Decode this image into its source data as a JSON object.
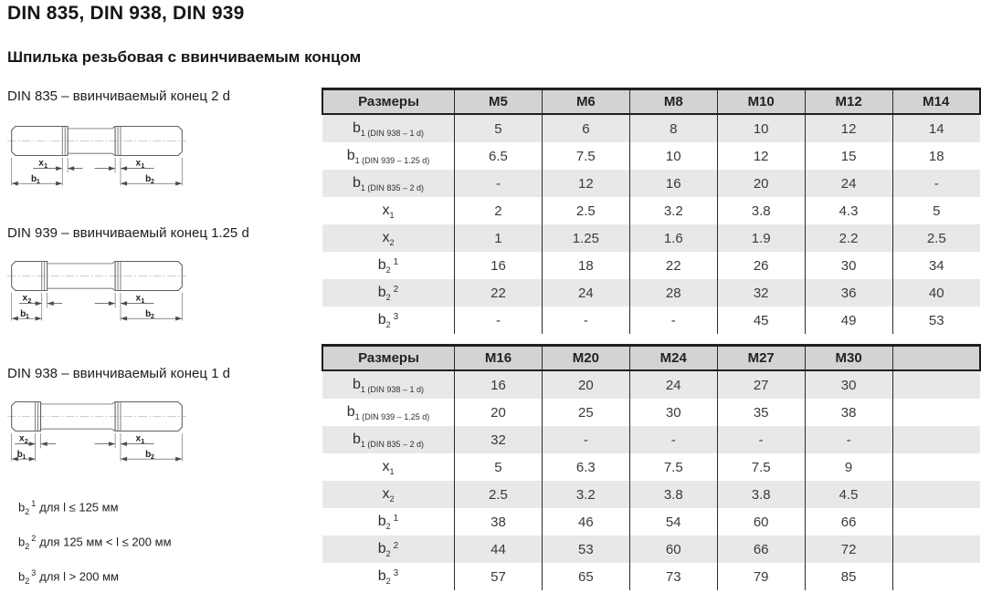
{
  "page": {
    "title": "DIN 835, DIN 938, DIN 939",
    "subtitle": "Шпилька резьбовая с ввинчиваемым концом"
  },
  "colors": {
    "header_bg": "#d3d3d3",
    "stripe_bg": "#e8e8e8",
    "border": "#1f1f1f"
  },
  "figures": [
    {
      "caption": "DIN 835 – ввинчиваемый конец 2 d",
      "left_dim": {
        "base": "x",
        "sub": "1"
      },
      "right_dim": {
        "base": "x",
        "sub": "1"
      },
      "left_len": {
        "base": "b",
        "sub": "1"
      },
      "right_len": {
        "base": "b",
        "sub": "2"
      }
    },
    {
      "caption": "DIN 939 – ввинчиваемый конец 1.25 d",
      "left_dim": {
        "base": "x",
        "sub": "2"
      },
      "right_dim": {
        "base": "x",
        "sub": "1"
      },
      "left_len": {
        "base": "b",
        "sub": "1"
      },
      "right_len": {
        "base": "b",
        "sub": "2"
      }
    },
    {
      "caption": "DIN 938 – ввинчиваемый конец 1 d",
      "left_dim": {
        "base": "x",
        "sub": "2"
      },
      "right_dim": {
        "base": "x",
        "sub": "1"
      },
      "left_len": {
        "base": "b",
        "sub": "1"
      },
      "right_len": {
        "base": "b",
        "sub": "2"
      }
    }
  ],
  "footnotes": [
    {
      "base": "b",
      "sub": "2",
      "sup": "1",
      "text": "для l ≤ 125 мм"
    },
    {
      "base": "b",
      "sub": "2",
      "sup": "2",
      "text": "для 125 мм < l ≤ 200 мм"
    },
    {
      "base": "b",
      "sub": "2",
      "sup": "3",
      "text": "для l > 200 мм"
    }
  ],
  "tables": [
    {
      "header": [
        "Размеры",
        "M5",
        "M6",
        "M8",
        "M10",
        "M12",
        "M14"
      ],
      "rows": [
        {
          "label": {
            "base": "b",
            "sub": "1 (DIN 938 – 1 d)"
          },
          "values": [
            "5",
            "6",
            "8",
            "10",
            "12",
            "14"
          ]
        },
        {
          "label": {
            "base": "b",
            "sub": "1 (DIN 939 – 1.25 d)"
          },
          "values": [
            "6.5",
            "7.5",
            "10",
            "12",
            "15",
            "18"
          ]
        },
        {
          "label": {
            "base": "b",
            "sub": "1 (DIN 835 – 2 d)"
          },
          "values": [
            "-",
            "12",
            "16",
            "20",
            "24",
            "-"
          ]
        },
        {
          "label": {
            "base": "x",
            "sub": "1"
          },
          "values": [
            "2",
            "2.5",
            "3.2",
            "3.8",
            "4.3",
            "5"
          ]
        },
        {
          "label": {
            "base": "x",
            "sub": "2"
          },
          "values": [
            "1",
            "1.25",
            "1.6",
            "1.9",
            "2.2",
            "2.5"
          ]
        },
        {
          "label": {
            "base": "b",
            "sub": "2",
            "sup": "1"
          },
          "values": [
            "16",
            "18",
            "22",
            "26",
            "30",
            "34"
          ]
        },
        {
          "label": {
            "base": "b",
            "sub": "2",
            "sup": "2"
          },
          "values": [
            "22",
            "24",
            "28",
            "32",
            "36",
            "40"
          ]
        },
        {
          "label": {
            "base": "b",
            "sub": "2",
            "sup": "3"
          },
          "values": [
            "-",
            "-",
            "-",
            "45",
            "49",
            "53"
          ]
        }
      ]
    },
    {
      "header": [
        "Размеры",
        "M16",
        "M20",
        "M24",
        "M27",
        "M30",
        ""
      ],
      "rows": [
        {
          "label": {
            "base": "b",
            "sub": "1 (DIN 938 – 1 d)"
          },
          "values": [
            "16",
            "20",
            "24",
            "27",
            "30",
            ""
          ]
        },
        {
          "label": {
            "base": "b",
            "sub": "1 (DIN 939 – 1.25 d)"
          },
          "values": [
            "20",
            "25",
            "30",
            "35",
            "38",
            ""
          ]
        },
        {
          "label": {
            "base": "b",
            "sub": "1 (DIN 835 – 2 d)"
          },
          "values": [
            "32",
            "-",
            "-",
            "-",
            "-",
            ""
          ]
        },
        {
          "label": {
            "base": "x",
            "sub": "1"
          },
          "values": [
            "5",
            "6.3",
            "7.5",
            "7.5",
            "9",
            ""
          ]
        },
        {
          "label": {
            "base": "x",
            "sub": "2"
          },
          "values": [
            "2.5",
            "3.2",
            "3.8",
            "3.8",
            "4.5",
            ""
          ]
        },
        {
          "label": {
            "base": "b",
            "sub": "2",
            "sup": "1"
          },
          "values": [
            "38",
            "46",
            "54",
            "60",
            "66",
            ""
          ]
        },
        {
          "label": {
            "base": "b",
            "sub": "2",
            "sup": "2"
          },
          "values": [
            "44",
            "53",
            "60",
            "66",
            "72",
            ""
          ]
        },
        {
          "label": {
            "base": "b",
            "sub": "2",
            "sup": "3"
          },
          "values": [
            "57",
            "65",
            "73",
            "79",
            "85",
            ""
          ]
        }
      ]
    }
  ]
}
